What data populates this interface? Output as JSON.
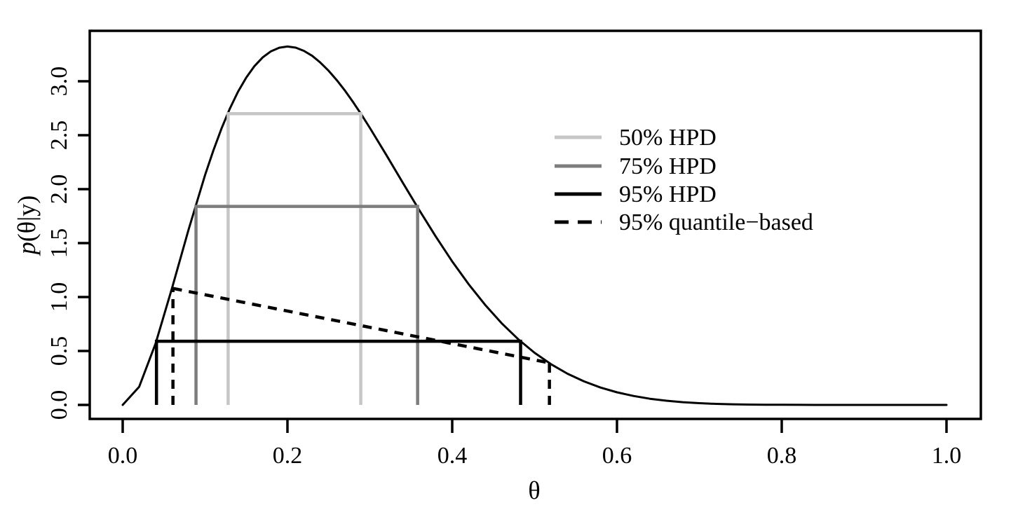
{
  "chart_data": {
    "type": "line",
    "title": "",
    "xlabel": "θ",
    "ylabel": "p(θ|y)",
    "ylabel_parts": {
      "italic": "p",
      "rest": "(θ|y)"
    },
    "xlim": [
      0.0,
      1.0
    ],
    "ylim": [
      0.0,
      3.35
    ],
    "x_tick_values": [
      0.0,
      0.2,
      0.4,
      0.6,
      0.8,
      1.0
    ],
    "x_tick_labels": [
      "0.0",
      "0.2",
      "0.4",
      "0.6",
      "0.8",
      "1.0"
    ],
    "y_tick_values": [
      0.0,
      0.5,
      1.0,
      1.5,
      2.0,
      2.5,
      3.0
    ],
    "y_tick_labels": [
      "0.0",
      "0.5",
      "1.0",
      "1.5",
      "2.0",
      "2.5",
      "3.0"
    ],
    "grid": "off",
    "curve": {
      "name": "posterior-density",
      "color": "#000000",
      "x": [
        0.0,
        0.02,
        0.04,
        0.06,
        0.08,
        0.1,
        0.11,
        0.12,
        0.13,
        0.14,
        0.15,
        0.16,
        0.17,
        0.18,
        0.19,
        0.2,
        0.21,
        0.22,
        0.23,
        0.24,
        0.25,
        0.26,
        0.27,
        0.28,
        0.29,
        0.3,
        0.32,
        0.34,
        0.36,
        0.38,
        0.4,
        0.42,
        0.44,
        0.46,
        0.48,
        0.5,
        0.52,
        0.54,
        0.56,
        0.58,
        0.6,
        0.62,
        0.64,
        0.66,
        0.68,
        0.7,
        0.72,
        0.74,
        0.76,
        0.78,
        0.8,
        0.84,
        0.88,
        0.92,
        0.96,
        1.0
      ],
      "y": [
        0.0,
        0.168,
        0.571,
        1.086,
        1.626,
        2.131,
        2.358,
        2.563,
        2.746,
        2.903,
        3.035,
        3.141,
        3.222,
        3.278,
        3.311,
        3.322,
        3.312,
        3.282,
        3.236,
        3.173,
        3.097,
        3.009,
        2.911,
        2.803,
        2.688,
        2.568,
        2.317,
        2.06,
        1.806,
        1.561,
        1.33,
        1.118,
        0.927,
        0.757,
        0.61,
        0.483,
        0.377,
        0.289,
        0.218,
        0.161,
        0.117,
        0.083,
        0.057,
        0.039,
        0.025,
        0.016,
        0.01,
        0.006,
        0.003,
        0.002,
        0.001,
        0.0,
        0.0,
        0.0,
        0.0,
        0.0
      ]
    },
    "intervals": [
      {
        "name": "hpd-50",
        "label": "50% HPD",
        "color": "#c6c6c6",
        "style": "solid",
        "x1": 0.128,
        "x2": 0.289,
        "level": 2.7
      },
      {
        "name": "hpd-75",
        "label": "75% HPD",
        "color": "#7d7d7d",
        "style": "solid",
        "x1": 0.089,
        "x2": 0.358,
        "level": 1.84
      },
      {
        "name": "hpd-95",
        "label": "95% HPD",
        "color": "#000000",
        "style": "solid",
        "x1": 0.041,
        "x2": 0.483,
        "level": 0.59
      }
    ],
    "quantile_interval": {
      "name": "quantile-95",
      "label": "95% quantile−based",
      "color": "#000000",
      "style": "dashed",
      "x1": 0.061,
      "x2": 0.518,
      "y1": 1.08,
      "y2": 0.39
    },
    "legend": {
      "position": "upper-right",
      "entries": [
        {
          "label": "50% HPD",
          "color": "#c6c6c6",
          "style": "solid"
        },
        {
          "label": "75% HPD",
          "color": "#7d7d7d",
          "style": "solid"
        },
        {
          "label": "95% HPD",
          "color": "#000000",
          "style": "solid"
        },
        {
          "label": "95% quantile−based",
          "color": "#000000",
          "style": "dashed"
        }
      ]
    },
    "colors": {
      "background": "#ffffff",
      "axis": "#000000",
      "hpd50": "#c6c6c6",
      "hpd75": "#7d7d7d",
      "hpd95": "#000000"
    }
  }
}
